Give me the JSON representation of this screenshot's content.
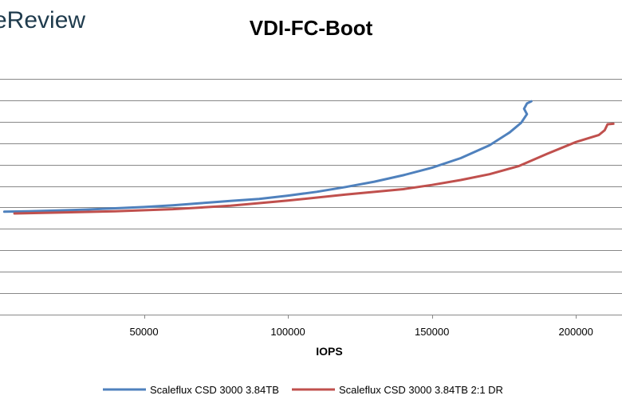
{
  "brand": {
    "logo_text": "eReview"
  },
  "chart_data": {
    "type": "line",
    "title": "VDI-FC-Boot",
    "xlabel": "IOPS",
    "ylabel": "",
    "xlim": [
      0,
      216000
    ],
    "ylim": [
      0,
      12
    ],
    "x_ticks": [
      50000,
      100000,
      150000,
      200000
    ],
    "x_tick_labels": [
      "50000",
      "100000",
      "150000",
      "200000"
    ],
    "y_ticks": [
      1,
      2,
      3,
      4,
      5,
      6,
      7,
      8,
      9,
      10,
      11
    ],
    "grid": true,
    "legend": "bottom",
    "series": [
      {
        "name": "Scaleflux CSD 3000 3.84TB",
        "color": "#4f81bd",
        "points": [
          [
            1500,
            4.8
          ],
          [
            10000,
            4.82
          ],
          [
            20000,
            4.86
          ],
          [
            30000,
            4.9
          ],
          [
            40000,
            4.96
          ],
          [
            50000,
            5.02
          ],
          [
            60000,
            5.1
          ],
          [
            70000,
            5.2
          ],
          [
            80000,
            5.3
          ],
          [
            90000,
            5.4
          ],
          [
            100000,
            5.55
          ],
          [
            110000,
            5.73
          ],
          [
            120000,
            5.95
          ],
          [
            130000,
            6.2
          ],
          [
            140000,
            6.5
          ],
          [
            150000,
            6.85
          ],
          [
            160000,
            7.3
          ],
          [
            170000,
            7.9
          ],
          [
            177000,
            8.5
          ],
          [
            181000,
            8.95
          ],
          [
            183000,
            9.35
          ],
          [
            182000,
            9.6
          ],
          [
            183000,
            9.85
          ],
          [
            184500,
            9.95
          ]
        ]
      },
      {
        "name": "Scaleflux CSD 3000 3.84TB 2:1 DR",
        "color": "#c0504d",
        "points": [
          [
            5000,
            4.72
          ],
          [
            20000,
            4.76
          ],
          [
            40000,
            4.82
          ],
          [
            60000,
            4.92
          ],
          [
            80000,
            5.08
          ],
          [
            100000,
            5.32
          ],
          [
            120000,
            5.6
          ],
          [
            140000,
            5.85
          ],
          [
            150000,
            6.05
          ],
          [
            160000,
            6.28
          ],
          [
            170000,
            6.55
          ],
          [
            180000,
            6.92
          ],
          [
            190000,
            7.5
          ],
          [
            200000,
            8.05
          ],
          [
            208000,
            8.38
          ],
          [
            210000,
            8.6
          ],
          [
            211000,
            8.88
          ],
          [
            213000,
            8.9
          ]
        ]
      }
    ]
  }
}
